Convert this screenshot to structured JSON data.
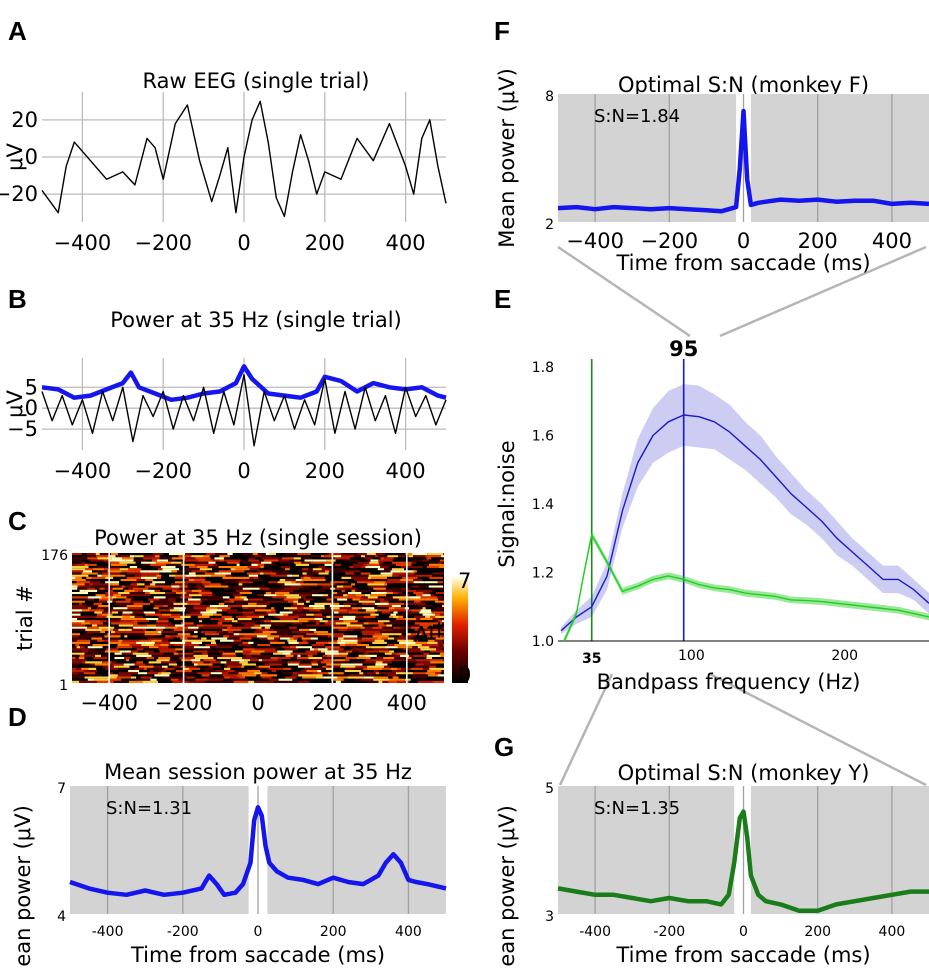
{
  "chart_data": [
    {
      "panel": "A",
      "type": "line",
      "title": "Raw EEG (single trial)",
      "ylabel": "μV",
      "xlabel": "",
      "xlim": [
        -500,
        500
      ],
      "ylim": [
        -35,
        35
      ],
      "xticks": [
        -400,
        -200,
        0,
        200,
        400
      ],
      "xtick_labels": [
        "−400",
        "−200",
        "0",
        "200",
        "400"
      ],
      "yticks": [
        20,
        0,
        -20
      ],
      "ytick_labels": [
        "20",
        "0",
        "−20"
      ],
      "grid": true,
      "series": [
        {
          "x": [
            -500,
            -460,
            -440,
            -420,
            -380,
            -340,
            -300,
            -270,
            -240,
            -220,
            -200,
            -170,
            -140,
            -110,
            -80,
            -60,
            -40,
            -20,
            0,
            20,
            40,
            60,
            80,
            100,
            120,
            140,
            160,
            180,
            200,
            240,
            280,
            320,
            360,
            400,
            420,
            440,
            460,
            480,
            500
          ],
          "values": [
            -18,
            -30,
            -5,
            8,
            -2,
            -12,
            -8,
            -15,
            10,
            5,
            -12,
            18,
            28,
            -2,
            -24,
            -10,
            5,
            -30,
            0,
            20,
            30,
            8,
            -22,
            -32,
            -8,
            12,
            -2,
            -20,
            -8,
            -12,
            10,
            -2,
            18,
            -5,
            -20,
            10,
            20,
            -5,
            -25
          ]
        }
      ]
    },
    {
      "panel": "B",
      "type": "line",
      "title": "Power at 35 Hz (single trial)",
      "ylabel": "μV",
      "xlabel": "",
      "xlim": [
        -500,
        500
      ],
      "ylim": [
        -10,
        12
      ],
      "xticks": [
        -400,
        -200,
        0,
        200,
        400
      ],
      "xtick_labels": [
        "−400",
        "−200",
        "0",
        "200",
        "400"
      ],
      "yticks": [
        5,
        0,
        -5
      ],
      "ytick_labels": [
        "5",
        "0",
        "−5"
      ],
      "grid": true,
      "series": [
        {
          "color": "#1515ee",
          "x": [
            -500,
            -460,
            -420,
            -380,
            -340,
            -300,
            -280,
            -260,
            -220,
            -180,
            -140,
            -100,
            -60,
            -20,
            0,
            20,
            60,
            100,
            140,
            180,
            200,
            240,
            280,
            320,
            360,
            400,
            440,
            480,
            500
          ],
          "values": [
            5,
            4.5,
            2.5,
            3,
            4.5,
            6,
            8.5,
            5,
            3.5,
            2,
            2.5,
            3.5,
            4,
            6,
            10,
            7,
            3.5,
            3,
            2.5,
            4,
            7.5,
            6.5,
            4,
            6,
            5,
            4.5,
            5,
            3,
            2.5
          ]
        },
        {
          "color": "#000000",
          "x": [
            -500,
            -475,
            -450,
            -425,
            -400,
            -375,
            -350,
            -325,
            -300,
            -275,
            -250,
            -225,
            -200,
            -175,
            -150,
            -125,
            -100,
            -75,
            -50,
            -25,
            0,
            25,
            50,
            75,
            100,
            125,
            150,
            175,
            200,
            225,
            250,
            275,
            300,
            325,
            350,
            375,
            400,
            425,
            450,
            475,
            500
          ],
          "values": [
            4,
            -3,
            3,
            -4,
            2,
            -6,
            4,
            -3,
            5,
            -8,
            3,
            -2,
            4,
            -5,
            3,
            -3,
            5,
            -6,
            4,
            -4,
            8,
            -9,
            4,
            -3,
            3,
            -5,
            2,
            -4,
            7,
            -6,
            4,
            -5,
            5,
            -3,
            3,
            -6,
            5,
            -2,
            3,
            -4,
            2
          ]
        }
      ]
    },
    {
      "panel": "C",
      "type": "heatmap",
      "title": "Power at 35 Hz (single session)",
      "ylabel": "trial #",
      "xlabel": "",
      "xlim": [
        -500,
        500
      ],
      "ylim": [
        1,
        176
      ],
      "xticks": [
        -400,
        -200,
        0,
        200,
        400
      ],
      "xtick_labels": [
        "−400",
        "−200",
        "0",
        "200",
        "400"
      ],
      "yticks": [
        176,
        1
      ],
      "ytick_labels": [
        "176",
        "1"
      ],
      "colorbar": {
        "min": 0,
        "max": 7,
        "label": "μV",
        "tick_labels": [
          "7",
          "0"
        ]
      },
      "marker_lines_x": [
        -400,
        -200,
        200,
        400
      ]
    },
    {
      "panel": "D",
      "type": "line",
      "title": "Mean session power at 35 Hz",
      "ylabel": "Mean power (μV)",
      "xlabel": "Time from saccade (ms)",
      "xlim": [
        -500,
        500
      ],
      "ylim": [
        4,
        7
      ],
      "xticks": [
        -400,
        -200,
        0,
        200,
        400
      ],
      "xtick_labels": [
        "-400",
        "-200",
        "0",
        "200",
        "400"
      ],
      "yticks": [
        7,
        4
      ],
      "ytick_labels": [
        "7",
        "4"
      ],
      "annotation": "S:N=1.31",
      "shaded_regions": [
        [
          -500,
          -25
        ],
        [
          25,
          500
        ]
      ],
      "grid": true,
      "series": [
        {
          "color": "#1515ee",
          "x": [
            -500,
            -450,
            -400,
            -350,
            -300,
            -250,
            -200,
            -150,
            -130,
            -110,
            -90,
            -60,
            -40,
            -20,
            -10,
            0,
            10,
            20,
            30,
            50,
            80,
            120,
            160,
            200,
            240,
            280,
            320,
            340,
            360,
            380,
            400,
            420,
            450,
            500
          ],
          "values": [
            4.75,
            4.6,
            4.5,
            4.45,
            4.55,
            4.45,
            4.5,
            4.6,
            4.9,
            4.7,
            4.45,
            4.5,
            4.7,
            5.2,
            6.2,
            6.5,
            6.3,
            5.6,
            5.2,
            5.0,
            4.85,
            4.8,
            4.7,
            4.85,
            4.75,
            4.7,
            4.9,
            5.2,
            5.4,
            5.2,
            4.8,
            4.75,
            4.7,
            4.6
          ]
        }
      ]
    },
    {
      "panel": "E",
      "type": "line",
      "title": "",
      "ylabel": "Signal:noise",
      "xlabel": "Bandpass frequency (Hz)",
      "xlim": [
        13,
        255
      ],
      "ylim": [
        1.0,
        1.8
      ],
      "xticks": [
        100,
        200
      ],
      "xtick_labels": [
        "100",
        "200"
      ],
      "yticks": [
        1.0,
        1.2,
        1.4,
        1.6,
        1.8
      ],
      "ytick_labels": [
        "1.0",
        "1.2",
        "1.4",
        "1.6",
        "1.8"
      ],
      "optima": [
        {
          "x": 95,
          "label": "95",
          "color": "#1515ee"
        },
        {
          "x": 35,
          "label": "35",
          "color": "#1a8a1a"
        }
      ],
      "series": [
        {
          "color": "#1a1acc",
          "x": [
            15,
            25,
            35,
            45,
            55,
            65,
            75,
            85,
            95,
            105,
            115,
            125,
            135,
            145,
            155,
            165,
            175,
            185,
            195,
            205,
            215,
            225,
            235,
            245,
            255
          ],
          "values": [
            1.03,
            1.07,
            1.1,
            1.19,
            1.38,
            1.52,
            1.6,
            1.64,
            1.66,
            1.655,
            1.64,
            1.61,
            1.57,
            1.53,
            1.48,
            1.43,
            1.39,
            1.35,
            1.3,
            1.26,
            1.22,
            1.18,
            1.18,
            1.15,
            1.11
          ],
          "band": [
            0.01,
            0.02,
            0.03,
            0.04,
            0.05,
            0.07,
            0.08,
            0.09,
            0.09,
            0.09,
            0.08,
            0.08,
            0.07,
            0.07,
            0.06,
            0.06,
            0.05,
            0.05,
            0.05,
            0.04,
            0.04,
            0.04,
            0.04,
            0.03,
            0.03
          ]
        },
        {
          "color": "#22cc22",
          "x": [
            15,
            25,
            30,
            35,
            45,
            55,
            65,
            75,
            85,
            95,
            105,
            115,
            125,
            135,
            145,
            155,
            165,
            175,
            185,
            195,
            205,
            215,
            225,
            235,
            245,
            255
          ],
          "values": [
            0.98,
            1.08,
            1.2,
            1.31,
            1.23,
            1.145,
            1.16,
            1.18,
            1.19,
            1.18,
            1.165,
            1.155,
            1.15,
            1.14,
            1.135,
            1.13,
            1.12,
            1.118,
            1.115,
            1.11,
            1.105,
            1.1,
            1.095,
            1.09,
            1.08,
            1.07
          ],
          "band": [
            0.01,
            0.01,
            0.01,
            0.01,
            0.01,
            0.01,
            0.01,
            0.01,
            0.01,
            0.01,
            0.01,
            0.01,
            0.01,
            0.01,
            0.01,
            0.01,
            0.01,
            0.01,
            0.01,
            0.01,
            0.01,
            0.01,
            0.01,
            0.01,
            0.01,
            0.01
          ]
        }
      ]
    },
    {
      "panel": "F",
      "type": "line",
      "title": "Optimal S:N (monkey F)",
      "ylabel": "Mean power (μV)",
      "xlabel": "Time from saccade (ms)",
      "xlim": [
        -500,
        500
      ],
      "ylim": [
        2,
        8
      ],
      "xticks": [
        -400,
        -200,
        0,
        200,
        400
      ],
      "xtick_labels": [
        "−400",
        "−200",
        "0",
        "200",
        "400"
      ],
      "yticks": [
        8,
        2
      ],
      "ytick_labels": [
        "8",
        "2"
      ],
      "annotation": "S:N=1.84",
      "shaded_regions": [
        [
          -500,
          -20
        ],
        [
          20,
          500
        ]
      ],
      "grid": true,
      "series": [
        {
          "color": "#1515ee",
          "x": [
            -500,
            -450,
            -400,
            -350,
            -300,
            -250,
            -200,
            -150,
            -100,
            -60,
            -40,
            -20,
            -10,
            0,
            10,
            20,
            40,
            60,
            100,
            150,
            200,
            250,
            300,
            350,
            400,
            450,
            500
          ],
          "values": [
            2.65,
            2.7,
            2.6,
            2.7,
            2.65,
            2.6,
            2.65,
            2.6,
            2.55,
            2.5,
            2.6,
            2.7,
            4.5,
            7.2,
            4.0,
            2.8,
            2.9,
            2.95,
            3.05,
            3.0,
            3.05,
            2.95,
            3.0,
            3.0,
            2.85,
            2.9,
            2.85
          ]
        }
      ]
    },
    {
      "panel": "G",
      "type": "line",
      "title": "Optimal S:N (monkey Y)",
      "ylabel": "Mean power (μV)",
      "xlabel": "Time from saccade (ms)",
      "xlim": [
        -500,
        500
      ],
      "ylim": [
        3,
        5
      ],
      "xticks": [
        -400,
        -200,
        0,
        200,
        400
      ],
      "xtick_labels": [
        "-400",
        "-200",
        "0",
        "200",
        "400"
      ],
      "yticks": [
        5,
        3
      ],
      "ytick_labels": [
        "5",
        "3"
      ],
      "annotation": "S:N=1.35",
      "shaded_regions": [
        [
          -500,
          -25
        ],
        [
          20,
          500
        ]
      ],
      "grid": true,
      "series": [
        {
          "color": "#1a7d1a",
          "x": [
            -500,
            -450,
            -400,
            -350,
            -300,
            -250,
            -200,
            -150,
            -100,
            -60,
            -40,
            -25,
            -10,
            0,
            10,
            20,
            40,
            60,
            100,
            150,
            200,
            250,
            300,
            350,
            400,
            450,
            500
          ],
          "values": [
            3.4,
            3.35,
            3.3,
            3.3,
            3.25,
            3.2,
            3.25,
            3.2,
            3.2,
            3.15,
            3.3,
            3.8,
            4.5,
            4.6,
            4.2,
            3.6,
            3.3,
            3.2,
            3.15,
            3.05,
            3.05,
            3.15,
            3.2,
            3.25,
            3.3,
            3.35,
            3.35
          ]
        }
      ]
    }
  ]
}
